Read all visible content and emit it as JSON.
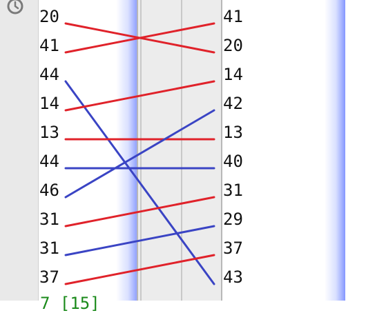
{
  "colors": {
    "red": "#e0222a",
    "blue": "#3a44c4",
    "bottom_text": "#1a8a1a"
  },
  "icons": {
    "top_left": "history-icon"
  },
  "left_values": [
    "20",
    "41",
    "44",
    "14",
    "13",
    "44",
    "46",
    "31",
    "31",
    "37"
  ],
  "right_values": [
    "41",
    "20",
    "14",
    "42",
    "13",
    "40",
    "31",
    "29",
    "37",
    "43"
  ],
  "connections": [
    {
      "from": 0,
      "to": 1,
      "color": "red"
    },
    {
      "from": 1,
      "to": 0,
      "color": "red"
    },
    {
      "from": 2,
      "to": 9,
      "color": "blue"
    },
    {
      "from": 3,
      "to": 2,
      "color": "red"
    },
    {
      "from": 4,
      "to": 4,
      "color": "red"
    },
    {
      "from": 5,
      "to": 5,
      "color": "blue"
    },
    {
      "from": 6,
      "to": 3,
      "color": "blue"
    },
    {
      "from": 7,
      "to": 6,
      "color": "red"
    },
    {
      "from": 8,
      "to": 7,
      "color": "blue"
    },
    {
      "from": 9,
      "to": 8,
      "color": "red"
    }
  ],
  "bottom_partial_text": "7 [15]"
}
